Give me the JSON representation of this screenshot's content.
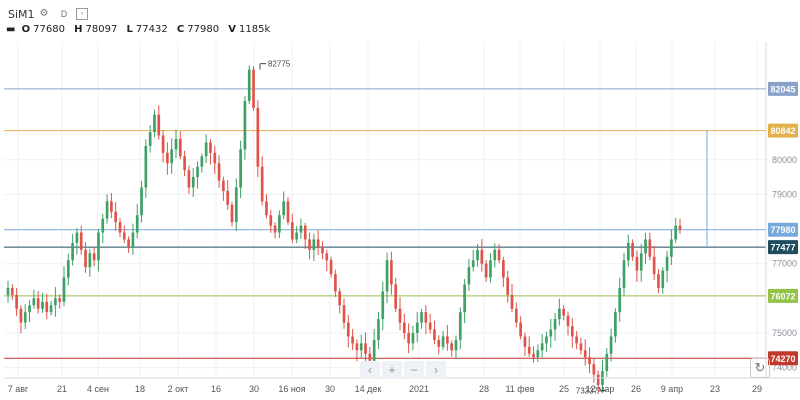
{
  "header": {
    "symbol": "SiM1",
    "interval": "D",
    "icons": [
      "gear-icon",
      "interval-label",
      "compare-icon"
    ],
    "ohlc": {
      "open_label": "O",
      "open": "77680",
      "high_label": "H",
      "high": "78097",
      "low_label": "L",
      "low": "77432",
      "close_label": "C",
      "close": "77980",
      "volume_label": "V",
      "volume": "1185k"
    }
  },
  "colors": {
    "up": "#3ea066",
    "down": "#e0534a",
    "price_82045": "#8aa2c8",
    "price_80842": "#e3b14b",
    "price_77980": "#78a9dc",
    "price_77477": "#1d4d5e",
    "price_76072": "#93c249",
    "price_74270": "#c0392b"
  },
  "chart_data": {
    "type": "candlestick",
    "y_ticks": [
      "80000",
      "79000",
      "77000",
      "75000",
      "74000"
    ],
    "ylim": [
      73700,
      83400
    ],
    "x_ticks": [
      "7 авг",
      "21",
      "4 сен",
      "18",
      "2 окт",
      "16",
      "30",
      "16 ноя",
      "30",
      "14 дек",
      "2021",
      "28",
      "11 фев",
      "25",
      "12 мар",
      "26",
      "9 апр",
      "23",
      "29"
    ],
    "price_lines": [
      {
        "label": "82045",
        "value": 82045,
        "color": "#8aa2c8"
      },
      {
        "label": "80842",
        "value": 80842,
        "color": "#e3b14b"
      },
      {
        "label": "77980",
        "value": 77980,
        "color": "#78a9dc"
      },
      {
        "label": "77477",
        "value": 77477,
        "color": "#1d4d5e"
      },
      {
        "label": "76072",
        "value": 76072,
        "color": "#93c249"
      },
      {
        "label": "74270",
        "value": 74270,
        "color": "#c0392b"
      }
    ],
    "annotations": [
      {
        "label": "82775",
        "value": 82775
      },
      {
        "label": "73337",
        "value": 73337
      }
    ],
    "close_series": [
      76300,
      76100,
      75700,
      75300,
      75600,
      75800,
      76000,
      75700,
      75900,
      75600,
      75800,
      76000,
      75900,
      76600,
      77100,
      77600,
      77900,
      77400,
      76900,
      77300,
      77100,
      77900,
      78300,
      78800,
      78500,
      78200,
      77900,
      77700,
      77500,
      77900,
      78400,
      79200,
      80400,
      80800,
      81300,
      80700,
      80200,
      79900,
      80300,
      80600,
      80100,
      79700,
      79200,
      79500,
      79800,
      80100,
      80500,
      80200,
      79900,
      79400,
      79100,
      78700,
      78200,
      79200,
      80300,
      81700,
      82600,
      81500,
      79800,
      78800,
      78400,
      78100,
      77900,
      78400,
      78800,
      78200,
      77700,
      77900,
      78100,
      77700,
      77400,
      77700,
      77500,
      77300,
      77100,
      76700,
      76200,
      75800,
      75300,
      74900,
      74700,
      74500,
      74700,
      74400,
      74200,
      74800,
      75400,
      76200,
      77100,
      76400,
      75700,
      75300,
      75000,
      74700,
      75000,
      75300,
      75600,
      75300,
      75100,
      74800,
      74600,
      74900,
      74700,
      74500,
      74800,
      75600,
      76400,
      76900,
      77100,
      77400,
      77000,
      76600,
      77100,
      77400,
      77100,
      76600,
      76100,
      75700,
      75300,
      74900,
      74600,
      74400,
      74300,
      74500,
      74700,
      74900,
      75100,
      75400,
      75700,
      75500,
      75200,
      74900,
      74700,
      74500,
      74300,
      74100,
      73800,
      73500,
      73900,
      74400,
      74900,
      75600,
      76300,
      77100,
      77600,
      77200,
      76800,
      77300,
      77700,
      77200,
      76700,
      76300,
      76800,
      77200,
      77700,
      78097,
      77980
    ]
  },
  "navigation": {
    "prev": "‹",
    "zoom_in": "+",
    "zoom_out": "−",
    "next": "›",
    "reset": "↻"
  }
}
